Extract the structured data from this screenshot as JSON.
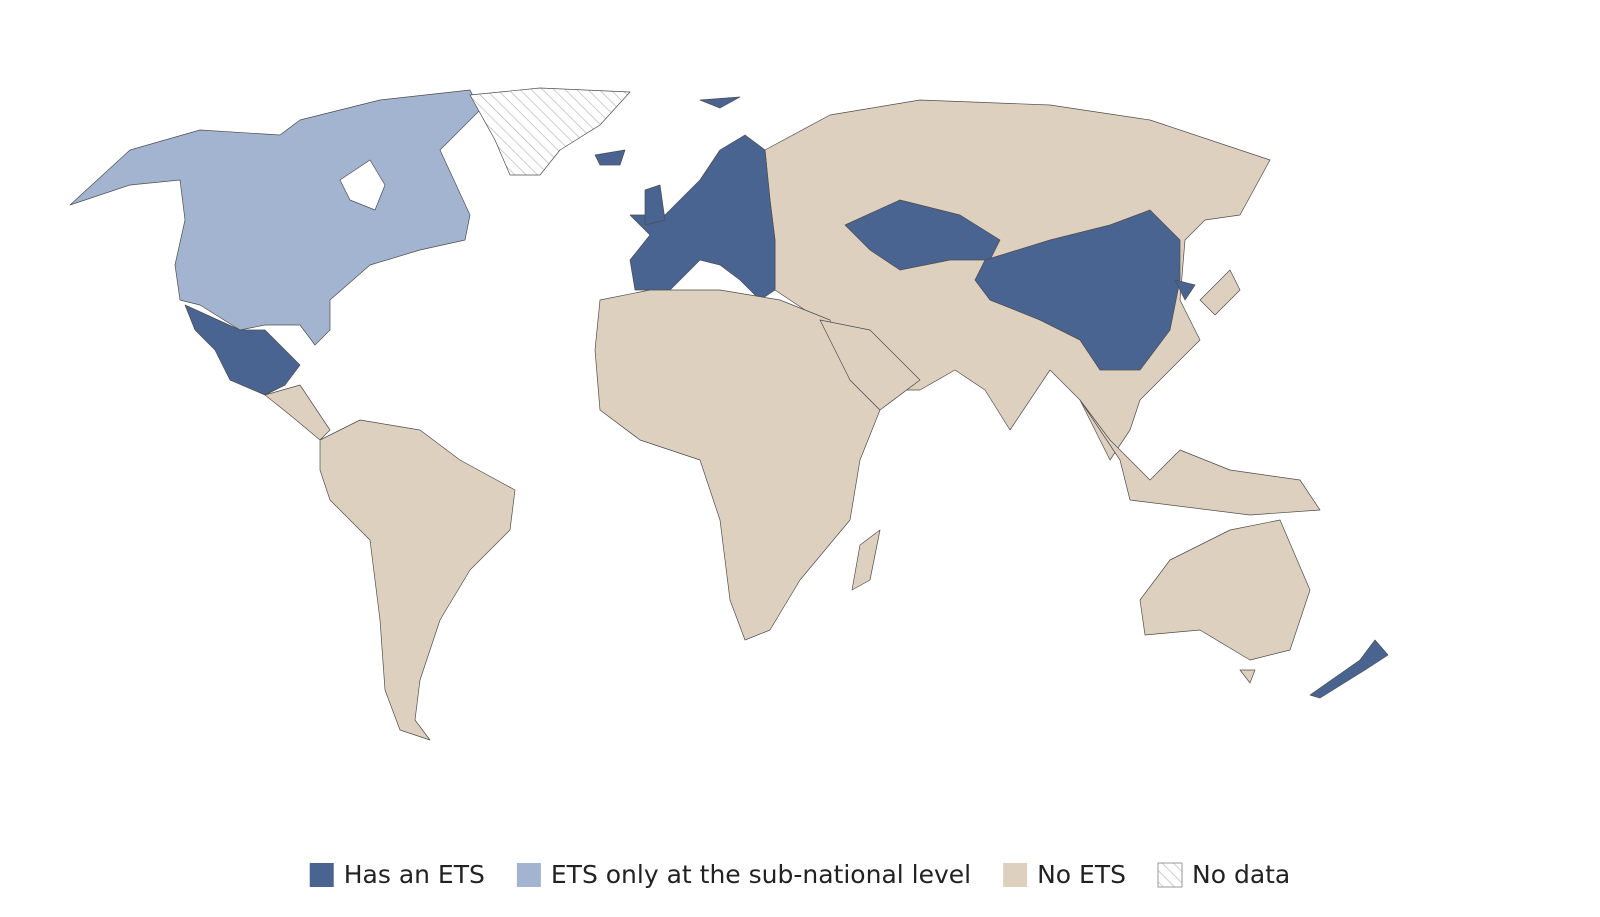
{
  "legend": {
    "items": [
      {
        "label": "Has an ETS",
        "color": "#4a6491"
      },
      {
        "label": "ETS only at the sub-national level",
        "color": "#a2b4d0"
      },
      {
        "label": "No ETS",
        "color": "#ded0bf"
      },
      {
        "label": "No data",
        "color": "#ffffff",
        "hatched": true
      }
    ]
  }
}
